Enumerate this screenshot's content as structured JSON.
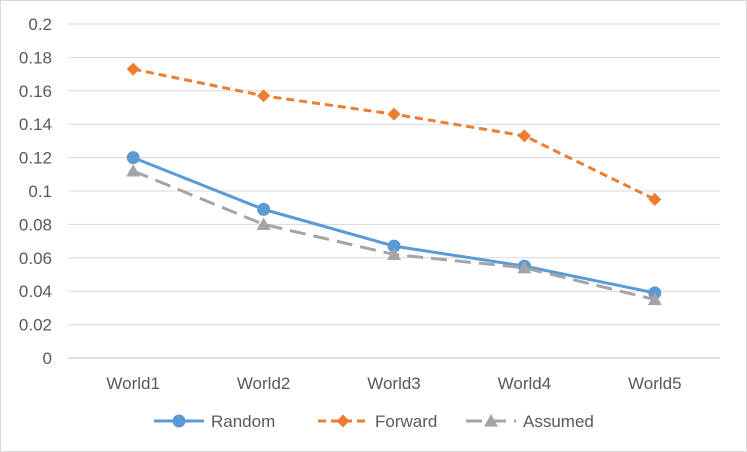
{
  "chart_data": {
    "type": "line",
    "categories": [
      "World1",
      "World2",
      "World3",
      "World4",
      "World5"
    ],
    "y_ticks": [
      "0",
      "0.02",
      "0.04",
      "0.06",
      "0.08",
      "0.1",
      "0.12",
      "0.14",
      "0.16",
      "0.18",
      "0.2"
    ],
    "ylim": [
      0,
      0.2
    ],
    "grid": true,
    "legend_position": "bottom",
    "series": [
      {
        "name": "Random",
        "values": [
          0.12,
          0.089,
          0.067,
          0.055,
          0.039
        ],
        "color": "#5b9bd5",
        "marker": "circle",
        "dash": "solid"
      },
      {
        "name": "Forward",
        "values": [
          0.173,
          0.157,
          0.146,
          0.133,
          0.095
        ],
        "color": "#ed7d31",
        "marker": "diamond",
        "dash": "dashed"
      },
      {
        "name": "Assumed",
        "values": [
          0.112,
          0.08,
          0.062,
          0.054,
          0.035
        ],
        "color": "#a5a5a5",
        "marker": "triangle",
        "dash": "long-dashed"
      }
    ]
  }
}
